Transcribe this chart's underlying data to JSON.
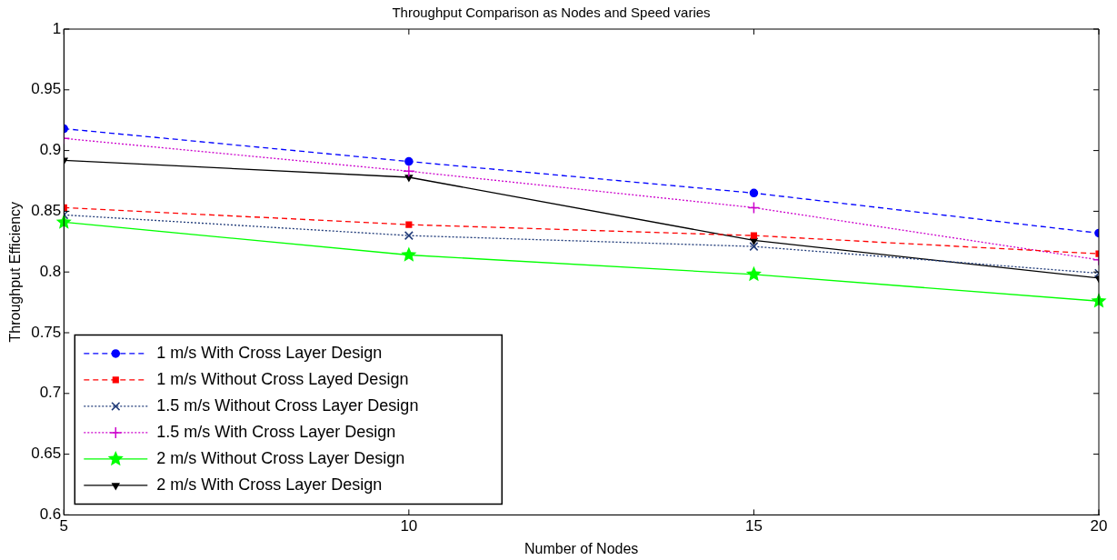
{
  "chart_data": {
    "type": "line",
    "title": "Throughput Comparison as Nodes and Speed varies",
    "xlabel": "Number of Nodes",
    "ylabel": "Throughput Efficiency",
    "x": [
      5,
      10,
      15,
      20
    ],
    "xlim": [
      5,
      20
    ],
    "xticks": [
      5,
      10,
      15,
      20
    ],
    "ylim": [
      0.6,
      1
    ],
    "yticks": [
      0.6,
      0.65,
      0.7,
      0.75,
      0.8,
      0.85,
      0.9,
      0.95,
      1
    ],
    "grid": false,
    "legend": "bottom left",
    "series": [
      {
        "name": "1 m/s With Cross Layer Design",
        "color": "#0000ff",
        "marker": "circle",
        "line_style": "dashed",
        "values": [
          0.918,
          0.891,
          0.865,
          0.832
        ]
      },
      {
        "name": "1 m/s Without Cross Layed Design",
        "color": "#ff0000",
        "marker": "square",
        "line_style": "dashed",
        "values": [
          0.853,
          0.839,
          0.83,
          0.815
        ]
      },
      {
        "name": "1.5 m/s Without Cross Layer Design",
        "color": "#1f3a78",
        "marker": "x",
        "line_style": "dotted",
        "values": [
          0.847,
          0.83,
          0.821,
          0.799
        ]
      },
      {
        "name": "1.5 m/s With Cross Layer Design",
        "color": "#cc00cc",
        "marker": "cross",
        "line_style": "dotted",
        "values": [
          0.91,
          0.883,
          0.853,
          0.81
        ]
      },
      {
        "name": "2 m/s Without Cross Layer Design",
        "color": "#00ff00",
        "marker": "star",
        "line_style": "solid",
        "values": [
          0.841,
          0.814,
          0.798,
          0.776
        ]
      },
      {
        "name": "2 m/s With Cross Layer Design",
        "color": "#000000",
        "marker": "triangle",
        "line_style": "solid",
        "values": [
          0.892,
          0.878,
          0.826,
          0.795
        ]
      }
    ]
  }
}
